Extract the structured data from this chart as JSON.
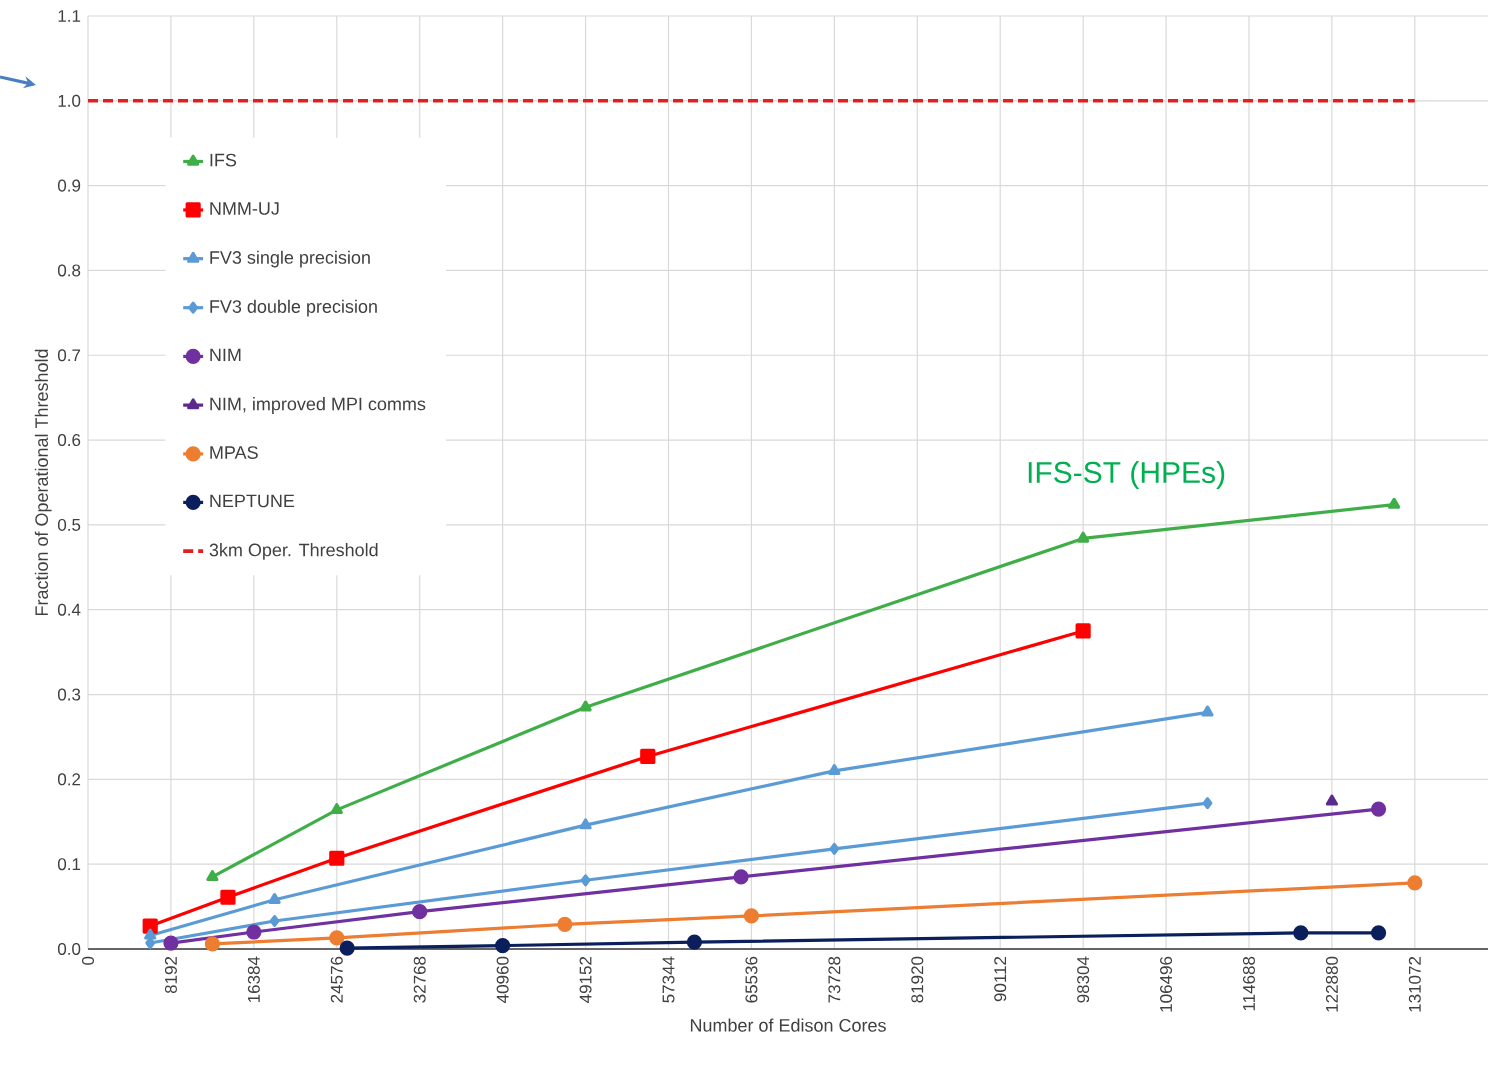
{
  "chart_data": {
    "type": "line",
    "xlabel": "Number of Edison Cores",
    "ylabel": "Fraction of Operational Threshold",
    "annotations": [
      "IFS-ST (HPEs)"
    ],
    "xlim": [
      0,
      138300
    ],
    "xticks": [
      0,
      8192,
      16384,
      24576,
      32768,
      40960,
      49152,
      57344,
      65536,
      73728,
      81920,
      90112,
      98304,
      106496,
      114688,
      122880,
      131072
    ],
    "ylim": [
      0,
      1.1
    ],
    "yticks": [
      {
        "value": 0,
        "label": "0.0"
      },
      0.1,
      0.2,
      0.3,
      0.4,
      0.5,
      0.6,
      0.7,
      0.8,
      0.9,
      {
        "value": 1,
        "label": "1.0"
      },
      1.1
    ],
    "grid": true,
    "legend": "top left",
    "line_style": "solid",
    "series": [
      {
        "name": "IFS",
        "color": "#3fae49",
        "marker": "triangle",
        "x": [
          12288,
          24576,
          49152,
          98304,
          129024
        ],
        "values": [
          0.085,
          0.164,
          0.285,
          0.484,
          0.524
        ]
      },
      {
        "name": "NMM-UJ",
        "color": "#ff0000",
        "marker": "square",
        "x": [
          6144,
          13824,
          24576,
          55296,
          98304
        ],
        "values": [
          0.027,
          0.061,
          0.107,
          0.227,
          0.375
        ]
      },
      {
        "name": "FV3 single precision",
        "color": "#5b9bd5",
        "marker": "triangle",
        "x": [
          6144,
          18432,
          49152,
          73728,
          110592
        ],
        "values": [
          0.016,
          0.058,
          0.146,
          0.21,
          0.279
        ]
      },
      {
        "name": "FV3 double precision",
        "color": "#5b9bd5",
        "marker": "diamond",
        "x": [
          6144,
          18432,
          49152,
          73728,
          110592
        ],
        "values": [
          0.007,
          0.033,
          0.081,
          0.118,
          0.172
        ]
      },
      {
        "name": "NIM",
        "color": "#7030a0",
        "marker": "circle",
        "x": [
          8192,
          16384,
          32768,
          64512,
          127488
        ],
        "values": [
          0.007,
          0.02,
          0.044,
          0.085,
          0.165
        ]
      },
      {
        "name": "NIM, improved MPI comms",
        "color": "#5b2a8c",
        "marker": "triangle",
        "x": [
          122880
        ],
        "values": [
          0.174
        ]
      },
      {
        "name": "MPAS",
        "color": "#ed7d31",
        "marker": "circle",
        "x": [
          12288,
          24576,
          47104,
          65536,
          131072
        ],
        "values": [
          0.006,
          0.013,
          0.029,
          0.039,
          0.078
        ]
      },
      {
        "name": "NEPTUNE",
        "color": "#0b1f5c",
        "marker": "circle",
        "x": [
          25600,
          40960,
          59904,
          119808,
          127488
        ],
        "values": [
          0.001,
          0.004,
          0.008,
          0.019,
          0.019
        ]
      }
    ],
    "ref_lines": [
      {
        "axis": "y",
        "value": 1,
        "label": "3km Oper. Threshold",
        "color": "#e02020",
        "line_style": "dashed"
      }
    ]
  }
}
